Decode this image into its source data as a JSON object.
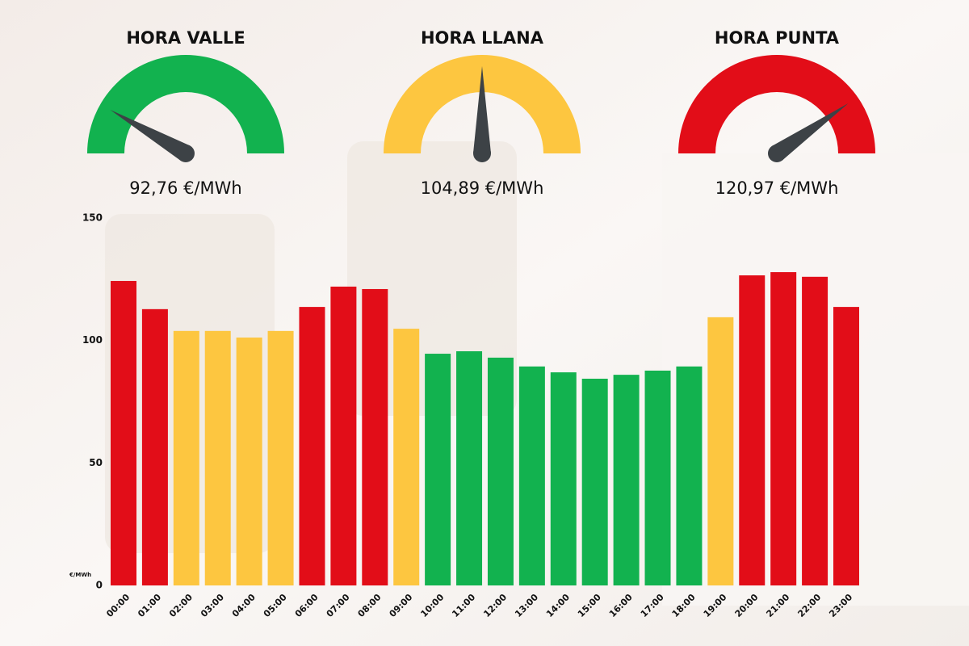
{
  "gauges": [
    {
      "title": "HORA VALLE",
      "value_label": "92,76 €/MWh",
      "color": "#12b24f"
    },
    {
      "title": "HORA LLANA",
      "value_label": "104,89 €/MWh",
      "color": "#fdc640"
    },
    {
      "title": "HORA PUNTA",
      "value_label": "120,97 €/MWh",
      "color": "#e20d18"
    }
  ],
  "chart_data": {
    "type": "bar",
    "ylabel": "€/MWh",
    "categories": [
      "00:00",
      "01:00",
      "02:00",
      "03:00",
      "04:00",
      "05:00",
      "06:00",
      "07:00",
      "08:00",
      "09:00",
      "10:00",
      "11:00",
      "12:00",
      "13:00",
      "14:00",
      "15:00",
      "16:00",
      "17:00",
      "18:00",
      "19:00",
      "20:00",
      "21:00",
      "22:00",
      "23:00"
    ],
    "values": [
      124.3,
      112.8,
      103.9,
      103.9,
      101.2,
      103.9,
      113.7,
      122,
      121,
      104.8,
      94.6,
      95.6,
      93,
      89.4,
      87,
      84.4,
      86,
      87.7,
      89.4,
      109.5,
      126.6,
      127.9,
      126,
      113.7
    ],
    "colors": [
      "#e20d18",
      "#e20d18",
      "#fdc640",
      "#fdc640",
      "#fdc640",
      "#fdc640",
      "#e20d18",
      "#e20d18",
      "#e20d18",
      "#fdc640",
      "#12b24f",
      "#12b24f",
      "#12b24f",
      "#12b24f",
      "#12b24f",
      "#12b24f",
      "#12b24f",
      "#12b24f",
      "#12b24f",
      "#fdc640",
      "#e20d18",
      "#e20d18",
      "#e20d18",
      "#e20d18"
    ],
    "ylim": [
      0,
      150
    ],
    "yticks": [
      0,
      50,
      100,
      150
    ]
  }
}
